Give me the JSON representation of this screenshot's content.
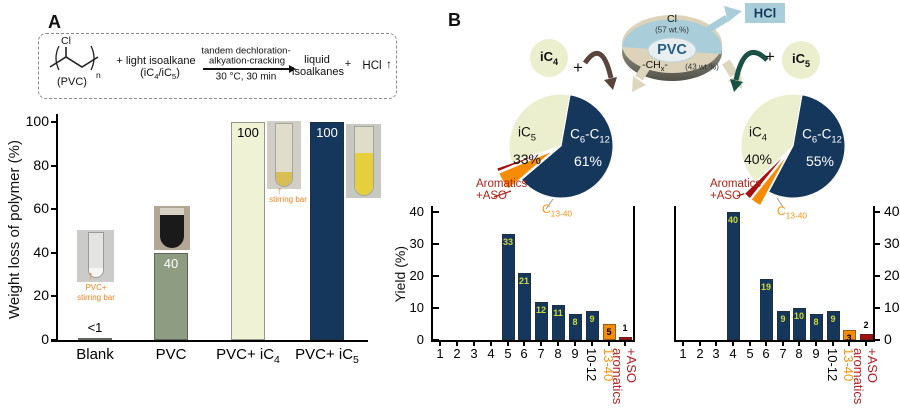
{
  "colors": {
    "navy": "#16375c",
    "cream": "#f0f2d6",
    "sage": "#8e9c82",
    "orange": "#f68b07",
    "dark_red": "#a5100f",
    "pale_yellow": "#ecefcd",
    "light_blue": "#a9ced9",
    "tan": "#dcd3ba",
    "value_label_green": "#cdd93a",
    "orange_text": "#f79410",
    "red_text": "#b41f24",
    "teal_arrow": "#1b5044",
    "brown_arrow": "#5a453c"
  },
  "panel_a": {
    "label": "A",
    "scheme": {
      "cl": "Cl",
      "sub_n": "n",
      "polymer": "(PVC)",
      "reactant_line1": "+ light isoalkane",
      "reactant_line2": "(iC_{4}/iC_{5})",
      "arrow_top1": "tandem dechloration-",
      "arrow_top2": "alkyation-cracking",
      "arrow_bottom": "30 °C, 30 min",
      "product_line1": "liquid",
      "product_line2": "isoalkanes",
      "plus": "+",
      "hcl": "HCl",
      "up_arrow": "↑"
    },
    "insets": {
      "blank_caption_line1": "PVC+",
      "blank_caption_line2": "stirring bar",
      "ic4_caption": "stirring bar",
      "up_arrow": "↑"
    }
  },
  "panel_b": {
    "label": "B",
    "diagram": {
      "ic4": "iC_{4}",
      "plus_left": "+",
      "hcl": "HCl",
      "plus_right": "+",
      "ic5": "iC_{5}"
    }
  },
  "chart_data": [
    {
      "id": "weight-loss",
      "type": "bar",
      "ylabel": "Weight loss of polymer (%)",
      "categories": [
        "Blank",
        "PVC",
        "PVC+ iC_{4}",
        "PVC+ iC_{5}"
      ],
      "values": [
        0.9,
        40,
        100,
        100
      ],
      "value_labels": [
        "<1",
        "40",
        "100",
        "100"
      ],
      "value_label_pos": [
        "above",
        "inside",
        "inside",
        "inside"
      ],
      "value_label_colors": [
        "#000000",
        "#ffffff",
        "#000000",
        "#ffffff"
      ],
      "bar_colors": [
        "#8e9c82",
        "#8e9c82",
        "#f0f2d6",
        "#16375c"
      ],
      "ylim": [
        0,
        100
      ],
      "yticks": [
        0,
        20,
        40,
        60,
        80,
        100
      ]
    },
    {
      "id": "pvc-composition",
      "type": "pie",
      "center_label": "PVC",
      "slices": [
        {
          "label": "Cl",
          "pct": 57,
          "pct_label": "(57 wt.%)",
          "color": "#a9ced9"
        },
        {
          "label": "-CH_{x}-",
          "pct": 43,
          "pct_label": "(43 wt.%)",
          "color": "#dcd3ba"
        }
      ]
    },
    {
      "id": "products-with-ic5",
      "type": "pie",
      "start_deg": 10,
      "slices": [
        {
          "label": "C_{6}-C_{12}",
          "pct": 61,
          "pct_label": "61%",
          "color": "#16375c",
          "exploded": false
        },
        {
          "label": "C_{13-40}",
          "pct": 5,
          "pct_label": "5%",
          "color": "#f68b07",
          "exploded": true
        },
        {
          "label": "Aromatics +ASO",
          "pct": 1,
          "pct_label": "1%",
          "color": "#a5100f",
          "exploded": true
        },
        {
          "label": "iC_{5}",
          "pct": 33,
          "pct_label": "33%",
          "color": "#ecefcd",
          "exploded": false
        }
      ],
      "outer_labels": {
        "aromatics1": "Aromatics",
        "aromatics2": "+ASO",
        "c1340": "C_{13-40}"
      }
    },
    {
      "id": "products-with-ic4",
      "type": "pie",
      "start_deg": 10,
      "slices": [
        {
          "label": "C_{6}-C_{12}",
          "pct": 55,
          "pct_label": "55%",
          "color": "#16375c",
          "exploded": false
        },
        {
          "label": "C_{13-40}",
          "pct": 3,
          "pct_label": "3%",
          "color": "#f68b07",
          "exploded": true
        },
        {
          "label": "Aromatics +ASO",
          "pct": 2,
          "pct_label": "2%",
          "color": "#a5100f",
          "exploded": true
        },
        {
          "label": "iC_{4}",
          "pct": 40,
          "pct_label": "40%",
          "color": "#ecefcd",
          "exploded": false
        }
      ],
      "outer_labels": {
        "aromatics1": "Aromatics",
        "aromatics2": "+ASO",
        "c1340": "C_{13-40}"
      }
    },
    {
      "id": "yield-with-ic5",
      "type": "bar",
      "ylabel": "Yield (%)",
      "categories": [
        "1",
        "2",
        "3",
        "4",
        "5",
        "6",
        "7",
        "8",
        "9",
        "10-12",
        "13-40",
        "aromatics +ASO"
      ],
      "values": [
        0,
        0,
        0,
        0,
        33,
        21,
        12,
        11,
        8,
        9,
        5,
        1
      ],
      "value_labels": [
        "",
        "",
        "",
        "",
        "33",
        "21",
        "12",
        "11",
        "8",
        "9",
        "5",
        "1"
      ],
      "value_label_pos": [
        "",
        "",
        "",
        "",
        "inside",
        "inside",
        "inside",
        "inside",
        "inside",
        "inside",
        "inside",
        "above"
      ],
      "value_label_colors": [
        "",
        "",
        "",
        "",
        "#cdd93a",
        "#cdd93a",
        "#cdd93a",
        "#cdd93a",
        "#cdd93a",
        "#cdd93a",
        "#000000",
        "#000000"
      ],
      "bar_colors": [
        "#16375c",
        "#16375c",
        "#16375c",
        "#16375c",
        "#16375c",
        "#16375c",
        "#16375c",
        "#16375c",
        "#16375c",
        "#16375c",
        "#f68b07",
        "#a5100f"
      ],
      "xtick_colors": [
        "#000000",
        "#000000",
        "#000000",
        "#000000",
        "#000000",
        "#000000",
        "#000000",
        "#000000",
        "#000000",
        "#000000",
        "#f79410",
        "#b41f24"
      ],
      "xtick_rotated": [
        false,
        false,
        false,
        false,
        false,
        false,
        false,
        false,
        false,
        true,
        true,
        true
      ],
      "ylim": [
        0,
        40
      ],
      "yticks": [
        0,
        10,
        20,
        30,
        40
      ]
    },
    {
      "id": "yield-with-ic4",
      "type": "bar",
      "ylabel": "",
      "categories": [
        "1",
        "2",
        "3",
        "4",
        "5",
        "6",
        "7",
        "8",
        "9",
        "10-12",
        "13-40",
        "aromatics +ASO"
      ],
      "values": [
        0,
        0,
        0,
        40,
        0,
        19,
        9,
        10,
        8,
        9,
        3,
        2
      ],
      "value_labels": [
        "",
        "",
        "",
        "40",
        "",
        "19",
        "9",
        "10",
        "8",
        "9",
        "3",
        "2"
      ],
      "value_label_pos": [
        "",
        "",
        "",
        "inside",
        "",
        "inside",
        "inside",
        "inside",
        "inside",
        "inside",
        "inside",
        "above"
      ],
      "value_label_colors": [
        "",
        "",
        "",
        "#cdd93a",
        "",
        "#cdd93a",
        "#cdd93a",
        "#cdd93a",
        "#cdd93a",
        "#cdd93a",
        "#000000",
        "#000000"
      ],
      "bar_colors": [
        "#16375c",
        "#16375c",
        "#16375c",
        "#16375c",
        "#16375c",
        "#16375c",
        "#16375c",
        "#16375c",
        "#16375c",
        "#16375c",
        "#f68b07",
        "#a5100f"
      ],
      "xtick_colors": [
        "#000000",
        "#000000",
        "#000000",
        "#000000",
        "#000000",
        "#000000",
        "#000000",
        "#000000",
        "#000000",
        "#000000",
        "#f79410",
        "#b41f24"
      ],
      "xtick_rotated": [
        false,
        false,
        false,
        false,
        false,
        false,
        false,
        false,
        false,
        true,
        true,
        true
      ],
      "ylim": [
        0,
        40
      ],
      "yticks": [
        0,
        10,
        20,
        30,
        40
      ]
    }
  ]
}
